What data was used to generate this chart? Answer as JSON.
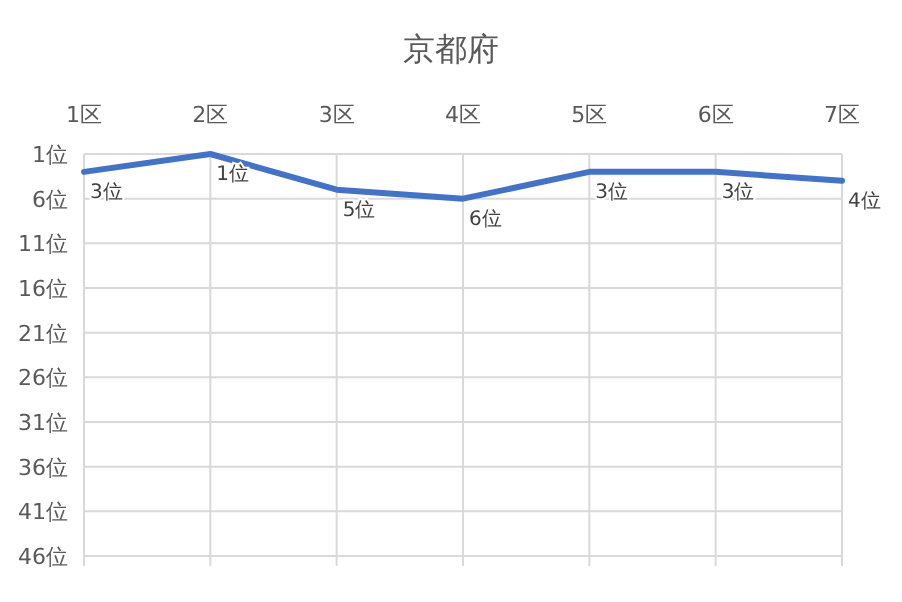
{
  "chart_data": {
    "type": "line",
    "title": "京都府",
    "categories": [
      "1区",
      "2区",
      "3区",
      "4区",
      "5区",
      "6区",
      "7区"
    ],
    "series": [
      {
        "color": "#4472c4",
        "values": [
          3,
          1,
          5,
          6,
          3,
          3,
          4
        ],
        "value_labels": [
          "3位",
          "1位",
          "5位",
          "6位",
          "3位",
          "3位",
          "4位"
        ]
      }
    ],
    "ylim": [
      46,
      1
    ],
    "yticks": [
      {
        "value": 1,
        "label": "1位"
      },
      {
        "value": 6,
        "label": "6位"
      },
      {
        "value": 11,
        "label": "11位"
      },
      {
        "value": 16,
        "label": "16位"
      },
      {
        "value": 21,
        "label": "21位"
      },
      {
        "value": 26,
        "label": "26位"
      },
      {
        "value": 31,
        "label": "31位"
      },
      {
        "value": 36,
        "label": "36位"
      },
      {
        "value": 41,
        "label": "41位"
      },
      {
        "value": 46,
        "label": "46位"
      }
    ],
    "grid": true,
    "marker": "none",
    "line_style": "solid"
  }
}
